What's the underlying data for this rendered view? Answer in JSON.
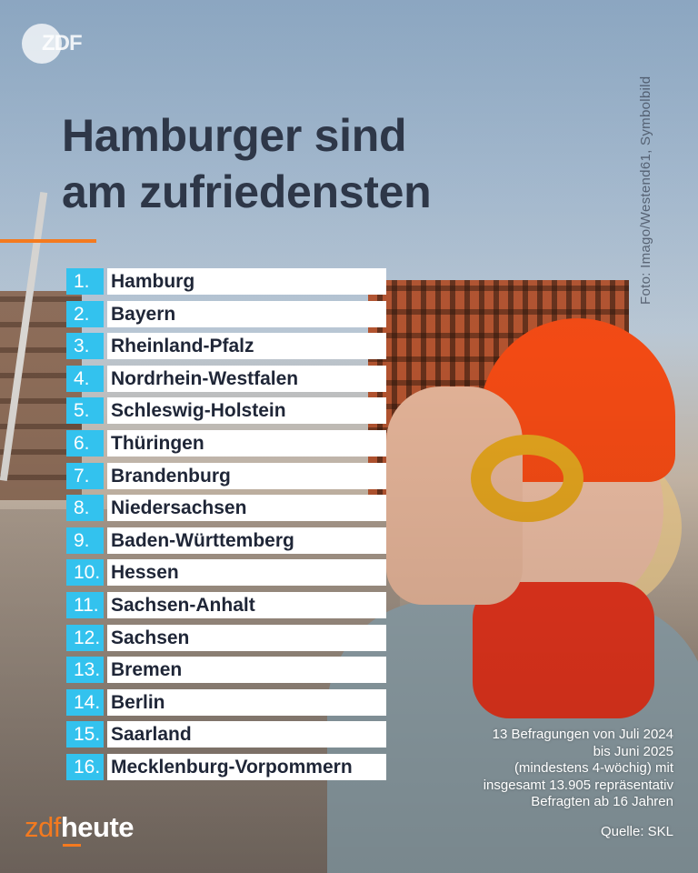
{
  "header": {
    "logo_text": "ZDF",
    "headline_line1": "Hamburger sind",
    "headline_line2": "am zufriedensten",
    "photo_credit": "Foto: Imago/Westend61, Symbolbild"
  },
  "ranking": [
    {
      "rank": "1.",
      "name": "Hamburg"
    },
    {
      "rank": "2.",
      "name": "Bayern"
    },
    {
      "rank": "3.",
      "name": "Rheinland-Pfalz"
    },
    {
      "rank": "4.",
      "name": "Nordrhein-Westfalen"
    },
    {
      "rank": "5.",
      "name": "Schleswig-Holstein"
    },
    {
      "rank": "6.",
      "name": "Thüringen"
    },
    {
      "rank": "7.",
      "name": "Brandenburg"
    },
    {
      "rank": "8.",
      "name": "Niedersachsen"
    },
    {
      "rank": "9.",
      "name": "Baden-Württemberg"
    },
    {
      "rank": "10.",
      "name": "Hessen"
    },
    {
      "rank": "11.",
      "name": "Sachsen-Anhalt"
    },
    {
      "rank": "12.",
      "name": "Sachsen"
    },
    {
      "rank": "13.",
      "name": "Bremen"
    },
    {
      "rank": "14.",
      "name": "Berlin"
    },
    {
      "rank": "15.",
      "name": "Saarland"
    },
    {
      "rank": "16.",
      "name": "Mecklenburg-Vorpommern"
    }
  ],
  "footnote": {
    "lines": [
      "13 Befragungen von Juli 2024",
      "bis Juni 2025",
      "(mindestens 4-wöchig) mit",
      "insgesamt 13.905 repräsentativ",
      "Befragten ab 16 Jahren"
    ],
    "source": "Quelle: SKL"
  },
  "brand": {
    "part1": "zdf",
    "part2": "heute"
  },
  "colors": {
    "rank_badge": "#33c2ee",
    "accent": "#f47a1f",
    "headline": "#2e3748"
  }
}
